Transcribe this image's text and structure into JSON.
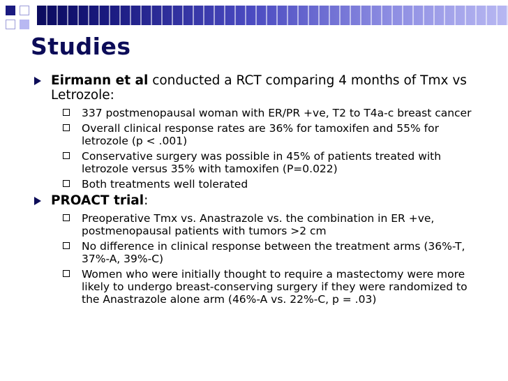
{
  "slide": {
    "title": "Studies",
    "points": [
      {
        "lead_bold": "Eirmann et al",
        "lead_rest": " conducted a RCT comparing 4 months of Tmx vs Letrozole:",
        "subpoints": [
          "337 postmenopausal woman with ER/PR +ve, T2 to T4a-c breast cancer",
          "Overall clinical response rates are 36% for tamoxifen and 55% for letrozole (p < .001)",
          "Conservative surgery was possible in 45% of patients treated with letrozole versus 35% with tamoxifen (P=0.022)",
          "Both treatments well tolerated"
        ]
      },
      {
        "lead_bold": "PROACT trial",
        "lead_rest": ":",
        "subpoints": [
          "Preoperative Tmx vs. Anastrazole vs. the combination in ER +ve, postmenopausal patients with tumors >2 cm",
          "No difference in clinical response between the treatment arms (36%-T, 37%-A, 39%-C)",
          "Women who were initially thought to require a mastectomy were more likely to undergo breast-conserving surgery if they were randomized to the Anastrazole alone arm (46%-A vs. 22%-C, p = .03)"
        ]
      }
    ]
  },
  "theme": {
    "title_color": "#0c0c58",
    "bar_dark": "#1a1a80",
    "bar_light": "#b8b8f2"
  }
}
